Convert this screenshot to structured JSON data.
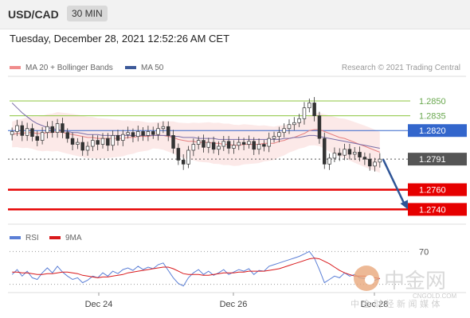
{
  "header": {
    "pair": "USD/CAD",
    "timeframe": "30 MIN"
  },
  "datetime": "Tuesday, December 28, 2021 12:52:26 AM CET",
  "legend": {
    "ma20_label": "MA 20 + Bollinger Bands",
    "ma50_label": "MA 50",
    "credit": "Research © 2021 Trading Central",
    "ma20_color": "#f08c8c",
    "ma50_color": "#3d5a99"
  },
  "rsi_legend": {
    "rsi_label": "RSI",
    "ma9_label": "9MA",
    "rsi_color": "#5b7fd6",
    "ma9_color": "#d9191c"
  },
  "chart_data": [
    {
      "type": "line",
      "title": "USD/CAD",
      "ylim": [
        1.2725,
        1.2875
      ],
      "x_ticks": [
        "Dec 24",
        "Dec 26",
        "Dec 28"
      ],
      "levels": [
        {
          "label": "1.2850",
          "value": 1.285,
          "color": "#8cc63f",
          "style": "thin",
          "badge": false
        },
        {
          "label": "1.2835",
          "value": 1.2835,
          "color": "#8cc63f",
          "style": "thin",
          "badge": false
        },
        {
          "label": "1.2820",
          "value": 1.282,
          "color": "#3366cc",
          "style": "thin",
          "badge": true
        },
        {
          "label": "1.2791",
          "value": 1.2791,
          "color": "#555555",
          "style": "dotted",
          "badge": true
        },
        {
          "label": "1.2760",
          "value": 1.276,
          "color": "#e60000",
          "style": "thick",
          "badge": true
        },
        {
          "label": "1.2740",
          "value": 1.274,
          "color": "#e60000",
          "style": "thick",
          "badge": true
        }
      ],
      "series": [
        {
          "name": "Price",
          "values": [
            1.2819,
            1.2825,
            1.2815,
            1.2822,
            1.2814,
            1.281,
            1.2818,
            1.2824,
            1.2818,
            1.2827,
            1.2818,
            1.2812,
            1.2806,
            1.2808,
            1.28,
            1.2804,
            1.281,
            1.2806,
            1.2812,
            1.2805,
            1.2815,
            1.281,
            1.2816,
            1.2818,
            1.2814,
            1.2819,
            1.2815,
            1.2819,
            1.2816,
            1.2822,
            1.2824,
            1.2815,
            1.2802,
            1.279,
            1.2786,
            1.28,
            1.2806,
            1.281,
            1.2803,
            1.2808,
            1.2801,
            1.2804,
            1.2809,
            1.2802,
            1.2805,
            1.2808,
            1.2806,
            1.2809,
            1.2801,
            1.2806,
            1.2804,
            1.2812,
            1.2814,
            1.2818,
            1.2822,
            1.2826,
            1.2828,
            1.2832,
            1.2843,
            1.2848,
            1.2835,
            1.2812,
            1.2786,
            1.2792,
            1.2797,
            1.2795,
            1.2801,
            1.2796,
            1.2798,
            1.2793,
            1.2791,
            1.2784,
            1.2788,
            1.2791
          ]
        },
        {
          "name": "MA 20",
          "values": [
            1.2816,
            1.2817,
            1.2817,
            1.2818,
            1.2818,
            1.2817,
            1.2817,
            1.2818,
            1.2818,
            1.2819,
            1.2818,
            1.2817,
            1.2816,
            1.2815,
            1.2814,
            1.2813,
            1.2813,
            1.2812,
            1.2812,
            1.2812,
            1.2812,
            1.2812,
            1.2812,
            1.2813,
            1.2813,
            1.2814,
            1.2814,
            1.2814,
            1.2815,
            1.2815,
            1.2815,
            1.2814,
            1.2813,
            1.2811,
            1.281,
            1.2809,
            1.2809,
            1.2808,
            1.2808,
            1.2808,
            1.2807,
            1.2807,
            1.2806,
            1.2806,
            1.2805,
            1.2805,
            1.2806,
            1.2806,
            1.2806,
            1.2806,
            1.2807,
            1.2807,
            1.2807,
            1.2809,
            1.281,
            1.2812,
            1.2813,
            1.2815,
            1.2817,
            1.282,
            1.2821,
            1.2821,
            1.2819,
            1.2817,
            1.2815,
            1.2813,
            1.2812,
            1.281,
            1.2808,
            1.2806,
            1.2804,
            1.2802,
            1.28,
            1.2798
          ]
        },
        {
          "name": "MA 50",
          "values": [
            1.2848,
            1.2843,
            1.2838,
            1.2834,
            1.283,
            1.2827,
            1.2825,
            1.2823,
            1.2822,
            1.2821,
            1.282,
            1.2819,
            1.2818,
            1.2818,
            1.2817,
            1.2816,
            1.2816,
            1.2816,
            1.2815,
            1.2815,
            1.2815,
            1.2815,
            1.2815,
            1.2815,
            1.2815,
            1.2815,
            1.2815,
            1.2815,
            1.2815,
            1.2815,
            1.2815,
            1.2815,
            1.2814,
            1.2814,
            1.2813,
            1.2813,
            1.2813,
            1.2812,
            1.2812,
            1.2812,
            1.2812,
            1.2811,
            1.2811,
            1.2811,
            1.2811,
            1.2811,
            1.2811,
            1.2811,
            1.2811,
            1.2811,
            1.2811,
            1.2811,
            1.2811,
            1.2811,
            1.2812,
            1.2812,
            1.2813,
            1.2813,
            1.2814,
            1.2815,
            1.2815,
            1.2814,
            1.2813,
            1.2812,
            1.2811,
            1.281,
            1.2809,
            1.2808,
            1.2807,
            1.2806,
            1.2805,
            1.2804,
            1.2803,
            1.2802
          ]
        }
      ],
      "forecast_arrow": {
        "from": 1.2791,
        "to": 1.274
      }
    },
    {
      "type": "line",
      "title": "RSI",
      "ylim": [
        20,
        80
      ],
      "y_ticks": [
        "70"
      ],
      "series": [
        {
          "name": "RSI",
          "values": [
            42,
            48,
            40,
            46,
            38,
            36,
            44,
            50,
            44,
            52,
            45,
            40,
            36,
            38,
            32,
            35,
            40,
            38,
            44,
            40,
            46,
            43,
            48,
            50,
            47,
            52,
            48,
            51,
            49,
            54,
            56,
            47,
            38,
            31,
            28,
            38,
            44,
            48,
            42,
            46,
            41,
            44,
            48,
            42,
            45,
            48,
            46,
            49,
            42,
            47,
            46,
            52,
            54,
            56,
            58,
            60,
            62,
            64,
            67,
            70,
            62,
            48,
            32,
            36,
            40,
            38,
            44,
            40,
            42,
            38,
            37,
            32,
            35,
            37
          ]
        },
        {
          "name": "9MA",
          "values": [
            45,
            45,
            44,
            44,
            43,
            42,
            42,
            43,
            43,
            44,
            45,
            45,
            44,
            43,
            41,
            40,
            39,
            38,
            39,
            39,
            40,
            41,
            42,
            44,
            45,
            46,
            47,
            48,
            49,
            50,
            51,
            51,
            49,
            46,
            43,
            42,
            42,
            42,
            41,
            41,
            42,
            43,
            44,
            44,
            44,
            45,
            45,
            46,
            46,
            46,
            46,
            47,
            48,
            49,
            51,
            53,
            55,
            57,
            59,
            61,
            62,
            61,
            58,
            55,
            51,
            47,
            44,
            42,
            40,
            40,
            40,
            39,
            38,
            37
          ]
        }
      ]
    }
  ],
  "watermark": {
    "brand": "中金网",
    "site": "CNGOLD.COM",
    "tagline": "中 金 财 经 新 闻 媒 体"
  }
}
